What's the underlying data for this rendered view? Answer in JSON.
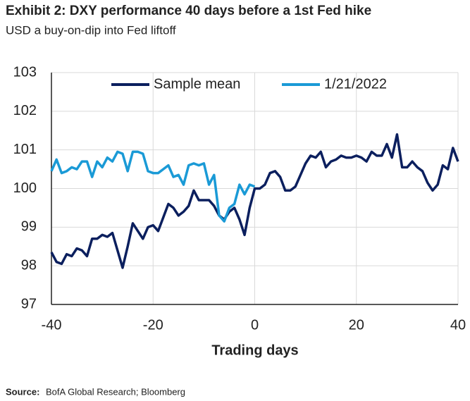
{
  "chart_data": {
    "type": "line",
    "title": "Exhibit 2: DXY performance 40 days before a 1st Fed hike",
    "subtitle": "USD a buy-on-dip into Fed liftoff",
    "x_label": "Trading days",
    "source_label": "Source:",
    "source": "BofA Global Research; Bloomberg",
    "x": [
      -40,
      -39,
      -38,
      -37,
      -36,
      -35,
      -34,
      -33,
      -32,
      -31,
      -30,
      -29,
      -28,
      -27,
      -26,
      -25,
      -24,
      -23,
      -22,
      -21,
      -20,
      -19,
      -18,
      -17,
      -16,
      -15,
      -14,
      -13,
      -12,
      -11,
      -10,
      -9,
      -8,
      -7,
      -6,
      -5,
      -4,
      -3,
      -2,
      -1,
      0,
      1,
      2,
      3,
      4,
      5,
      6,
      7,
      8,
      9,
      10,
      11,
      12,
      13,
      14,
      15,
      16,
      17,
      18,
      19,
      20,
      21,
      22,
      23,
      24,
      25,
      26,
      27,
      28,
      29,
      30,
      31,
      32,
      33,
      34,
      35,
      36,
      37,
      38,
      39,
      40
    ],
    "series": [
      {
        "name": "Sample mean",
        "color": "#0b1f5e",
        "values": [
          98.35,
          98.1,
          98.05,
          98.3,
          98.25,
          98.45,
          98.4,
          98.25,
          98.7,
          98.7,
          98.8,
          98.75,
          98.85,
          98.4,
          97.95,
          98.5,
          99.1,
          98.9,
          98.7,
          99.0,
          99.05,
          98.9,
          99.25,
          99.6,
          99.5,
          99.3,
          99.4,
          99.55,
          99.95,
          99.7,
          99.7,
          99.7,
          99.55,
          99.3,
          99.2,
          99.4,
          99.5,
          99.2,
          98.8,
          99.5,
          100.0,
          100.0,
          100.1,
          100.4,
          100.45,
          100.3,
          99.95,
          99.95,
          100.05,
          100.35,
          100.65,
          100.85,
          100.8,
          100.95,
          100.55,
          100.7,
          100.75,
          100.85,
          100.8,
          100.8,
          100.85,
          100.8,
          100.7,
          100.95,
          100.85,
          100.85,
          101.15,
          100.8,
          101.4,
          100.55,
          100.55,
          100.7,
          100.55,
          100.45,
          100.15,
          99.95,
          100.1,
          100.6,
          100.5,
          101.05,
          100.7
        ]
      },
      {
        "name": "1/21/2022",
        "color": "#1a9ad6",
        "values": [
          100.45,
          100.75,
          100.4,
          100.45,
          100.55,
          100.5,
          100.7,
          100.7,
          100.3,
          100.7,
          100.55,
          100.8,
          100.7,
          100.95,
          100.9,
          100.45,
          100.95,
          100.95,
          100.9,
          100.45,
          100.4,
          100.4,
          100.5,
          100.6,
          100.3,
          100.35,
          100.1,
          100.6,
          100.65,
          100.6,
          100.65,
          100.1,
          100.35,
          99.3,
          99.15,
          99.5,
          99.6,
          100.1,
          99.85,
          100.1,
          100.05,
          null,
          null,
          null,
          null,
          null,
          null,
          null,
          null,
          null,
          null,
          null,
          null,
          null,
          null,
          null,
          null,
          null,
          null,
          null,
          null,
          null,
          null,
          null,
          null,
          null,
          null,
          null,
          null,
          null,
          null,
          null,
          null,
          null,
          null,
          null,
          null,
          null,
          null,
          null,
          null
        ]
      }
    ],
    "xlim": [
      -40,
      40
    ],
    "xticks": [
      -40,
      -20,
      0,
      20,
      40
    ],
    "ylim": [
      97,
      103
    ],
    "yticks": [
      97,
      98,
      99,
      100,
      101,
      102,
      103
    ],
    "grid": true,
    "legend": "top"
  }
}
